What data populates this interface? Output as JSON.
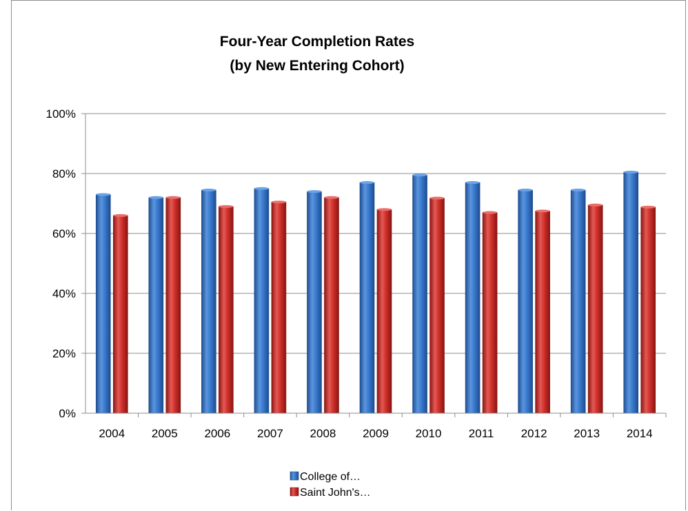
{
  "chart_data": {
    "type": "bar",
    "title": [
      "Four-Year Completion Rates",
      "(by New Entering Cohort)"
    ],
    "xlabel": "",
    "ylabel": "",
    "categories": [
      "2004",
      "2005",
      "2006",
      "2007",
      "2008",
      "2009",
      "2010",
      "2011",
      "2012",
      "2013",
      "2014"
    ],
    "series": [
      {
        "name": "College of…",
        "color": "#2e6fc0",
        "values": [
          0.73,
          0.72,
          0.745,
          0.75,
          0.74,
          0.77,
          0.795,
          0.77,
          0.745,
          0.745,
          0.805
        ]
      },
      {
        "name": "Saint John's…",
        "color": "#cc2a26",
        "values": [
          0.66,
          0.72,
          0.69,
          0.705,
          0.72,
          0.68,
          0.718,
          0.67,
          0.675,
          0.695,
          0.688
        ]
      }
    ],
    "ylim": [
      0,
      1
    ],
    "yticks": [
      0,
      0.2,
      0.4,
      0.6,
      0.8,
      1.0
    ],
    "ytick_labels": [
      "0%",
      "20%",
      "40%",
      "60%",
      "80%",
      "100%"
    ],
    "grid": true,
    "legend_position": "bottom"
  }
}
